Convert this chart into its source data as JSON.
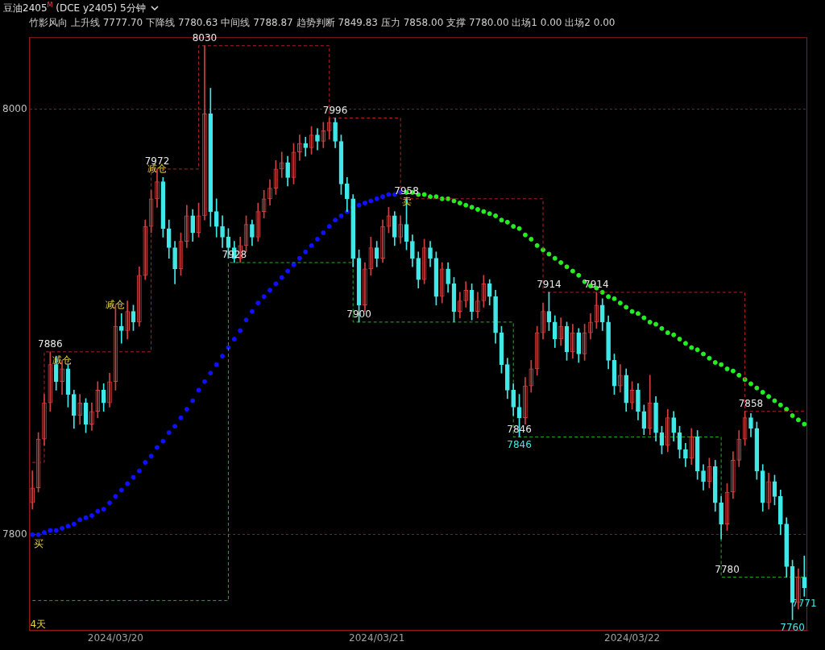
{
  "chart_data": {
    "type": "candlestick",
    "title": "豆油2405$^{M}$ (DCE y2405) 5分钟",
    "subtitle": "竹影风向 上升线 7777.70 下降线 7780.63 中间线 7788.87 趋势判断 7849.83 压力 7858.00 支撑 7780.00 出场1 0.00 出场2 0.00",
    "categories": [
      null,
      null,
      null,
      null,
      null,
      null,
      null,
      null,
      null,
      null,
      null,
      null,
      null,
      null,
      "2024/03/20",
      null,
      null,
      null,
      null,
      null,
      null,
      null,
      null,
      null,
      null,
      null,
      null,
      null,
      null,
      null,
      null,
      null,
      null,
      null,
      null,
      null,
      null,
      null,
      null,
      null,
      null,
      null,
      null,
      null,
      null,
      null,
      null,
      null,
      null,
      null,
      null,
      null,
      null,
      null,
      null,
      null,
      null,
      null,
      "2024/03/21",
      null,
      null,
      null,
      null,
      null,
      null,
      null,
      null,
      null,
      null,
      null,
      null,
      null,
      null,
      null,
      null,
      null,
      null,
      null,
      null,
      null,
      null,
      null,
      null,
      null,
      null,
      null,
      null,
      null,
      null,
      null,
      null,
      null,
      null,
      null,
      null,
      null,
      null,
      null,
      null,
      null,
      null,
      "2024/03/22",
      null,
      null,
      null,
      null,
      null,
      null,
      null,
      null,
      null,
      null,
      null,
      null,
      null,
      null,
      null,
      null,
      null,
      null,
      null,
      null,
      null,
      null,
      null,
      null,
      null,
      null,
      null,
      null,
      null
    ],
    "ohlc": [
      [
        7815,
        7830,
        7812,
        7822
      ],
      [
        7822,
        7848,
        7820,
        7845
      ],
      [
        7845,
        7866,
        7842,
        7862
      ],
      [
        7862,
        7886,
        7858,
        7880
      ],
      [
        7880,
        7884,
        7868,
        7872
      ],
      [
        7872,
        7882,
        7866,
        7878
      ],
      [
        7878,
        7880,
        7860,
        7866
      ],
      [
        7866,
        7868,
        7850,
        7856
      ],
      [
        7856,
        7866,
        7852,
        7862
      ],
      [
        7862,
        7864,
        7848,
        7852
      ],
      [
        7852,
        7862,
        7849,
        7858
      ],
      [
        7858,
        7872,
        7855,
        7868
      ],
      [
        7868,
        7871,
        7858,
        7862
      ],
      [
        7862,
        7876,
        7860,
        7872
      ],
      [
        7872,
        7908,
        7868,
        7898
      ],
      [
        7898,
        7904,
        7890,
        7896
      ],
      [
        7896,
        7910,
        7892,
        7905
      ],
      [
        7905,
        7908,
        7896,
        7900
      ],
      [
        7900,
        7926,
        7898,
        7922
      ],
      [
        7922,
        7948,
        7920,
        7945
      ],
      [
        7945,
        7962,
        7942,
        7958
      ],
      [
        7958,
        7972,
        7954,
        7966
      ],
      [
        7966,
        7968,
        7940,
        7944
      ],
      [
        7944,
        7948,
        7930,
        7935
      ],
      [
        7935,
        7938,
        7918,
        7925
      ],
      [
        7925,
        7942,
        7922,
        7938
      ],
      [
        7938,
        7955,
        7935,
        7950
      ],
      [
        7950,
        7953,
        7938,
        7942
      ],
      [
        7942,
        7956,
        7940,
        7950
      ],
      [
        7950,
        8030,
        7948,
        7998
      ],
      [
        7998,
        8010,
        7945,
        7952
      ],
      [
        7952,
        7958,
        7940,
        7945
      ],
      [
        7945,
        7950,
        7935,
        7940
      ],
      [
        7940,
        7944,
        7930,
        7935
      ],
      [
        7935,
        7938,
        7928,
        7930
      ],
      [
        7930,
        7940,
        7928,
        7936
      ],
      [
        7936,
        7950,
        7933,
        7946
      ],
      [
        7946,
        7948,
        7936,
        7940
      ],
      [
        7940,
        7956,
        7938,
        7952
      ],
      [
        7952,
        7962,
        7949,
        7958
      ],
      [
        7958,
        7967,
        7955,
        7963
      ],
      [
        7963,
        7976,
        7960,
        7972
      ],
      [
        7972,
        7980,
        7968,
        7975
      ],
      [
        7975,
        7978,
        7964,
        7968
      ],
      [
        7968,
        7984,
        7965,
        7980
      ],
      [
        7980,
        7988,
        7976,
        7984
      ],
      [
        7984,
        7987,
        7978,
        7982
      ],
      [
        7982,
        7992,
        7979,
        7988
      ],
      [
        7988,
        7991,
        7981,
        7985
      ],
      [
        7985,
        7994,
        7982,
        7990
      ],
      [
        7990,
        7996,
        7986,
        7994
      ],
      [
        7994,
        7996,
        7982,
        7985
      ],
      [
        7985,
        7988,
        7960,
        7965
      ],
      [
        7965,
        7968,
        7952,
        7958
      ],
      [
        7958,
        7960,
        7926,
        7930
      ],
      [
        7930,
        7934,
        7900,
        7908
      ],
      [
        7908,
        7928,
        7905,
        7925
      ],
      [
        7925,
        7940,
        7922,
        7935
      ],
      [
        7935,
        7938,
        7926,
        7930
      ],
      [
        7930,
        7948,
        7928,
        7945
      ],
      [
        7945,
        7954,
        7942,
        7950
      ],
      [
        7950,
        7952,
        7936,
        7940
      ],
      [
        7940,
        7950,
        7937,
        7946
      ],
      [
        7946,
        7958,
        7934,
        7938
      ],
      [
        7938,
        7941,
        7926,
        7930
      ],
      [
        7930,
        7933,
        7916,
        7920
      ],
      [
        7920,
        7939,
        7918,
        7935
      ],
      [
        7935,
        7938,
        7926,
        7930
      ],
      [
        7930,
        7933,
        7908,
        7912
      ],
      [
        7912,
        7928,
        7909,
        7925
      ],
      [
        7925,
        7928,
        7914,
        7918
      ],
      [
        7918,
        7921,
        7900,
        7905
      ],
      [
        7905,
        7914,
        7902,
        7910
      ],
      [
        7910,
        7919,
        7907,
        7915
      ],
      [
        7915,
        7918,
        7901,
        7905
      ],
      [
        7905,
        7914,
        7902,
        7910
      ],
      [
        7910,
        7922,
        7907,
        7918
      ],
      [
        7918,
        7920,
        7908,
        7912
      ],
      [
        7912,
        7915,
        7890,
        7895
      ],
      [
        7895,
        7898,
        7876,
        7880
      ],
      [
        7880,
        7883,
        7864,
        7868
      ],
      [
        7868,
        7871,
        7856,
        7860
      ],
      [
        7860,
        7866,
        7846,
        7855
      ],
      [
        7855,
        7874,
        7852,
        7870
      ],
      [
        7870,
        7882,
        7867,
        7878
      ],
      [
        7878,
        7898,
        7875,
        7895
      ],
      [
        7895,
        7909,
        7892,
        7905
      ],
      [
        7905,
        7914,
        7896,
        7900
      ],
      [
        7900,
        7903,
        7888,
        7892
      ],
      [
        7892,
        7902,
        7889,
        7898
      ],
      [
        7898,
        7900,
        7882,
        7886
      ],
      [
        7886,
        7899,
        7883,
        7895
      ],
      [
        7895,
        7897,
        7881,
        7885
      ],
      [
        7885,
        7899,
        7882,
        7895
      ],
      [
        7895,
        7904,
        7892,
        7900
      ],
      [
        7900,
        7914,
        7897,
        7908
      ],
      [
        7908,
        7911,
        7896,
        7900
      ],
      [
        7900,
        7903,
        7878,
        7882
      ],
      [
        7882,
        7885,
        7866,
        7870
      ],
      [
        7870,
        7880,
        7867,
        7875
      ],
      [
        7875,
        7878,
        7858,
        7862
      ],
      [
        7862,
        7872,
        7859,
        7868
      ],
      [
        7868,
        7871,
        7854,
        7858
      ],
      [
        7858,
        7861,
        7847,
        7850
      ],
      [
        7850,
        7875,
        7847,
        7862
      ],
      [
        7862,
        7865,
        7844,
        7848
      ],
      [
        7848,
        7851,
        7838,
        7842
      ],
      [
        7842,
        7859,
        7839,
        7855
      ],
      [
        7855,
        7858,
        7844,
        7848
      ],
      [
        7848,
        7851,
        7836,
        7840
      ],
      [
        7840,
        7843,
        7832,
        7836
      ],
      [
        7836,
        7850,
        7833,
        7846
      ],
      [
        7846,
        7849,
        7826,
        7830
      ],
      [
        7830,
        7833,
        7821,
        7825
      ],
      [
        7825,
        7836,
        7822,
        7832
      ],
      [
        7832,
        7835,
        7811,
        7815
      ],
      [
        7815,
        7818,
        7798,
        7805
      ],
      [
        7805,
        7824,
        7802,
        7820
      ],
      [
        7820,
        7839,
        7817,
        7835
      ],
      [
        7835,
        7849,
        7832,
        7845
      ],
      [
        7845,
        7858,
        7842,
        7855
      ],
      [
        7855,
        7857,
        7846,
        7850
      ],
      [
        7850,
        7853,
        7826,
        7830
      ],
      [
        7830,
        7833,
        7811,
        7815
      ],
      [
        7815,
        7829,
        7812,
        7825
      ],
      [
        7825,
        7828,
        7814,
        7818
      ],
      [
        7818,
        7821,
        7800,
        7805
      ],
      [
        7805,
        7808,
        7780,
        7785
      ],
      [
        7785,
        7788,
        7760,
        7768
      ],
      [
        7768,
        7784,
        7765,
        7780
      ],
      [
        7780,
        7790,
        7771,
        7775
      ]
    ],
    "value_labels": [
      null,
      null,
      null,
      null,
      null,
      "减仓",
      null,
      null,
      null,
      null,
      null,
      null,
      null,
      null,
      "减仓",
      null,
      null,
      null,
      null,
      null,
      null,
      "减仓",
      null,
      null,
      null,
      null,
      null,
      null,
      null,
      null,
      null,
      null,
      null,
      null,
      null,
      null,
      null,
      null,
      null,
      null,
      null,
      null,
      null,
      null,
      null,
      null,
      null,
      null,
      null,
      null,
      null,
      null,
      null,
      null,
      null,
      null,
      null,
      null,
      null,
      null,
      null,
      null,
      null,
      null,
      null,
      null,
      null,
      null,
      null,
      null,
      null,
      null,
      null,
      null,
      null,
      null,
      null,
      null,
      null,
      null,
      null,
      null,
      "7846",
      null,
      null,
      null,
      null,
      null,
      null,
      null,
      null,
      null,
      null,
      null,
      null,
      null,
      null,
      null,
      null,
      null,
      null,
      null,
      null,
      null,
      null,
      null,
      null,
      null,
      null,
      null,
      null,
      null,
      null,
      null,
      null,
      null,
      null,
      null,
      null,
      null,
      null,
      null,
      null,
      null,
      null,
      null,
      null,
      null,
      "7760",
      null,
      "7771"
    ],
    "series": [
      {
        "type": "step",
        "color": "#b22222",
        "line_style": "dashed",
        "values": [
          7834,
          7834,
          7834,
          7886,
          7886,
          7886,
          7886,
          7886,
          7886,
          7886,
          7886,
          7886,
          7886,
          7886,
          7886,
          7886,
          7886,
          7886,
          7886,
          7886,
          7886,
          7972,
          7972,
          7972,
          7972,
          7972,
          7972,
          7972,
          7972,
          8030,
          8030,
          8030,
          8030,
          8030,
          8030,
          8030,
          8030,
          8030,
          8030,
          8030,
          8030,
          8030,
          8030,
          8030,
          8030,
          8030,
          8030,
          8030,
          8030,
          8030,
          8030,
          7996,
          7996,
          7996,
          7996,
          7996,
          7996,
          7996,
          7996,
          7996,
          7996,
          7996,
          7996,
          7958,
          7958,
          7958,
          7958,
          7958,
          7958,
          7958,
          7958,
          7958,
          7958,
          7958,
          7958,
          7958,
          7958,
          7958,
          7958,
          7958,
          7958,
          7958,
          7958,
          7958,
          7958,
          7958,
          7958,
          7914,
          7914,
          7914,
          7914,
          7914,
          7914,
          7914,
          7914,
          7914,
          7914,
          7914,
          7914,
          7914,
          7914,
          7914,
          7914,
          7914,
          7914,
          7914,
          7914,
          7914,
          7914,
          7914,
          7914,
          7914,
          7914,
          7914,
          7914,
          7914,
          7914,
          7914,
          7914,
          7914,
          7914,
          7858,
          7858,
          7858,
          7858,
          7858,
          7858,
          7858,
          7858,
          7858,
          7858
        ],
        "value_labels": [
          null,
          null,
          null,
          "7886",
          null,
          null,
          null,
          null,
          null,
          null,
          null,
          null,
          null,
          null,
          null,
          null,
          null,
          null,
          null,
          null,
          null,
          "7972",
          null,
          null,
          null,
          null,
          null,
          null,
          null,
          "8030",
          null,
          null,
          null,
          null,
          null,
          null,
          null,
          null,
          null,
          null,
          null,
          null,
          null,
          null,
          null,
          null,
          null,
          null,
          null,
          null,
          null,
          "7996",
          null,
          null,
          null,
          null,
          null,
          null,
          null,
          null,
          null,
          null,
          null,
          "7958",
          null,
          null,
          null,
          null,
          null,
          null,
          null,
          null,
          null,
          null,
          null,
          null,
          null,
          null,
          null,
          null,
          null,
          null,
          null,
          null,
          null,
          null,
          null,
          "7914",
          null,
          null,
          null,
          null,
          null,
          null,
          null,
          "7914",
          null,
          null,
          null,
          null,
          null,
          null,
          null,
          null,
          null,
          null,
          null,
          null,
          null,
          null,
          null,
          null,
          null,
          null,
          null,
          null,
          null,
          null,
          null,
          null,
          null,
          "7858",
          null,
          null,
          null,
          null,
          null,
          null,
          null,
          null,
          null
        ]
      },
      {
        "type": "step",
        "color": "#22b222",
        "line_style": "dashed",
        "values": [
          7769,
          7769,
          7769,
          7769,
          7769,
          7769,
          7769,
          7769,
          7769,
          7769,
          7769,
          7769,
          7769,
          7769,
          7769,
          7769,
          7769,
          7769,
          7769,
          7769,
          7769,
          7769,
          7769,
          7769,
          7769,
          7769,
          7769,
          7769,
          7769,
          7769,
          7769,
          7769,
          7769,
          7769,
          7928,
          7928,
          7928,
          7928,
          7928,
          7928,
          7928,
          7928,
          7928,
          7928,
          7928,
          7928,
          7928,
          7928,
          7928,
          7928,
          7928,
          7928,
          7928,
          7928,
          7928,
          7900,
          7900,
          7900,
          7900,
          7900,
          7900,
          7900,
          7900,
          7900,
          7900,
          7900,
          7900,
          7900,
          7900,
          7900,
          7900,
          7900,
          7900,
          7900,
          7900,
          7900,
          7900,
          7900,
          7900,
          7900,
          7900,
          7900,
          7846,
          7846,
          7846,
          7846,
          7846,
          7846,
          7846,
          7846,
          7846,
          7846,
          7846,
          7846,
          7846,
          7846,
          7846,
          7846,
          7846,
          7846,
          7846,
          7846,
          7846,
          7846,
          7846,
          7846,
          7846,
          7846,
          7846,
          7846,
          7846,
          7846,
          7846,
          7846,
          7846,
          7846,
          7846,
          7780,
          7780,
          7780,
          7780,
          7780,
          7780,
          7780,
          7780,
          7780,
          7780,
          7780,
          7780,
          7780,
          7780
        ],
        "value_labels": [
          null,
          null,
          null,
          null,
          null,
          null,
          null,
          null,
          null,
          null,
          null,
          null,
          null,
          null,
          null,
          null,
          null,
          null,
          null,
          null,
          null,
          null,
          null,
          null,
          null,
          null,
          null,
          null,
          null,
          null,
          null,
          null,
          null,
          null,
          "7928",
          null,
          null,
          null,
          null,
          null,
          null,
          null,
          null,
          null,
          null,
          null,
          null,
          null,
          null,
          null,
          null,
          null,
          null,
          null,
          null,
          "7900",
          null,
          null,
          null,
          null,
          null,
          null,
          null,
          null,
          null,
          null,
          null,
          null,
          null,
          null,
          null,
          null,
          null,
          null,
          null,
          null,
          null,
          null,
          null,
          null,
          null,
          null,
          "7846",
          null,
          null,
          null,
          null,
          null,
          null,
          null,
          null,
          null,
          null,
          null,
          null,
          null,
          null,
          null,
          null,
          null,
          null,
          null,
          null,
          null,
          null,
          null,
          null,
          null,
          null,
          null,
          null,
          null,
          null,
          null,
          null,
          null,
          null,
          "7780",
          null,
          null,
          null,
          null,
          null,
          null,
          null,
          null,
          null,
          null,
          null,
          null,
          null
        ]
      },
      {
        "type": "scatter",
        "color": "#1010ff",
        "marker": "circle",
        "values": [
          7800,
          7800,
          7801,
          7802,
          7802,
          7803,
          7804,
          7805,
          7807,
          7808,
          7809,
          7811,
          7812,
          7815,
          7818,
          7821,
          7824,
          7827,
          7830,
          7834,
          7837,
          7841,
          7844,
          7848,
          7851,
          7855,
          7859,
          7863,
          7868,
          7872,
          7876,
          7880,
          7884,
          7888,
          7892,
          7896,
          7901,
          7905,
          7909,
          7912,
          7915,
          7918,
          7921,
          7924,
          7927,
          7930,
          7933,
          7936,
          7939,
          7942,
          7945,
          7948,
          7950,
          7952,
          7954,
          7955,
          7956,
          7957,
          7958,
          7959,
          7960,
          7960,
          7961,
          null,
          null,
          null,
          null,
          null,
          null,
          null,
          null,
          null,
          null,
          null,
          null,
          null,
          null,
          null,
          null,
          null,
          null,
          null,
          null,
          null,
          null,
          null,
          null,
          null,
          null,
          null,
          null,
          null,
          null,
          null,
          null,
          null,
          null,
          null,
          null,
          null,
          null,
          null,
          null,
          null,
          null,
          null,
          null,
          null,
          null,
          null,
          null,
          null,
          null,
          null,
          null,
          null,
          null,
          null,
          null,
          null,
          null,
          null,
          null,
          null,
          null,
          null,
          null,
          null,
          null,
          null,
          null
        ],
        "value_labels": [
          null,
          "买",
          null,
          null,
          null,
          null,
          null,
          null,
          null,
          null,
          null,
          null,
          null,
          null,
          null,
          null,
          null,
          null,
          null,
          null,
          null,
          null,
          null,
          null,
          null,
          null,
          null,
          null,
          null,
          null,
          null,
          null,
          null,
          null,
          null,
          null,
          null,
          null,
          null,
          null,
          null,
          null,
          null,
          null,
          null,
          null,
          null,
          null,
          null,
          null,
          null,
          null,
          null,
          null,
          null,
          null,
          null,
          null,
          null,
          null,
          null,
          null,
          null,
          null,
          null,
          null,
          null,
          null,
          null,
          null,
          null,
          null,
          null,
          null,
          null,
          null,
          null,
          null,
          null,
          null,
          null,
          null,
          null,
          null,
          null,
          null,
          null,
          null,
          null,
          null,
          null,
          null,
          null,
          null,
          null,
          null,
          null,
          null,
          null,
          null,
          null,
          null,
          null,
          null,
          null,
          null,
          null,
          null,
          null,
          null,
          null,
          null,
          null,
          null,
          null,
          null,
          null,
          null,
          null,
          null,
          null,
          null,
          null,
          null,
          null,
          null,
          null,
          null,
          null,
          null,
          null
        ]
      },
      {
        "type": "scatter",
        "color": "#22ee22",
        "marker": "circle",
        "values": [
          null,
          null,
          null,
          null,
          null,
          null,
          null,
          null,
          null,
          null,
          null,
          null,
          null,
          null,
          null,
          null,
          null,
          null,
          null,
          null,
          null,
          null,
          null,
          null,
          null,
          null,
          null,
          null,
          null,
          null,
          null,
          null,
          null,
          null,
          null,
          null,
          null,
          null,
          null,
          null,
          null,
          null,
          null,
          null,
          null,
          null,
          null,
          null,
          null,
          null,
          null,
          null,
          null,
          null,
          null,
          null,
          null,
          null,
          null,
          null,
          null,
          null,
          null,
          7961,
          7961,
          7960,
          7960,
          7959,
          7959,
          7958,
          7958,
          7957,
          7956,
          7955,
          7954,
          7953,
          7952,
          7951,
          7950,
          7948,
          7947,
          7945,
          7944,
          7941,
          7939,
          7936,
          7934,
          7932,
          7930,
          7928,
          7926,
          7924,
          7922,
          7919,
          7917,
          7916,
          7914,
          7912,
          7911,
          7909,
          7907,
          7905,
          7904,
          7902,
          7900,
          7899,
          7897,
          7895,
          7894,
          7892,
          7890,
          7888,
          7887,
          7885,
          7883,
          7881,
          7880,
          7878,
          7877,
          7875,
          7873,
          7871,
          7869,
          7867,
          7865,
          7863,
          7861,
          7859,
          7856,
          7854,
          7852
        ],
        "value_labels": [
          null,
          null,
          null,
          null,
          null,
          null,
          null,
          null,
          null,
          null,
          null,
          null,
          null,
          null,
          null,
          null,
          null,
          null,
          null,
          null,
          null,
          null,
          null,
          null,
          null,
          null,
          null,
          null,
          null,
          null,
          null,
          null,
          null,
          null,
          null,
          null,
          null,
          null,
          null,
          null,
          null,
          null,
          null,
          null,
          null,
          null,
          null,
          null,
          null,
          null,
          null,
          null,
          null,
          null,
          null,
          null,
          null,
          null,
          null,
          null,
          null,
          null,
          null,
          "卖",
          null,
          null,
          null,
          null,
          null,
          null,
          null,
          null,
          null,
          null,
          null,
          null,
          null,
          null,
          null,
          null,
          null,
          null,
          null,
          null,
          null,
          null,
          null,
          null,
          null,
          null,
          null,
          null,
          null,
          null,
          null,
          null,
          null,
          null,
          null,
          null,
          null,
          null,
          null,
          null,
          null,
          null,
          null,
          null,
          null,
          null,
          null,
          null,
          null,
          null,
          null,
          null,
          null,
          null,
          null,
          null,
          null,
          null,
          null,
          null,
          null,
          null,
          null,
          null,
          null,
          null,
          null
        ]
      }
    ],
    "ylim": [
      7755,
      8034
    ],
    "yticks": [
      7800,
      8000
    ],
    "grid": "y",
    "annotations": [
      "4天"
    ]
  }
}
